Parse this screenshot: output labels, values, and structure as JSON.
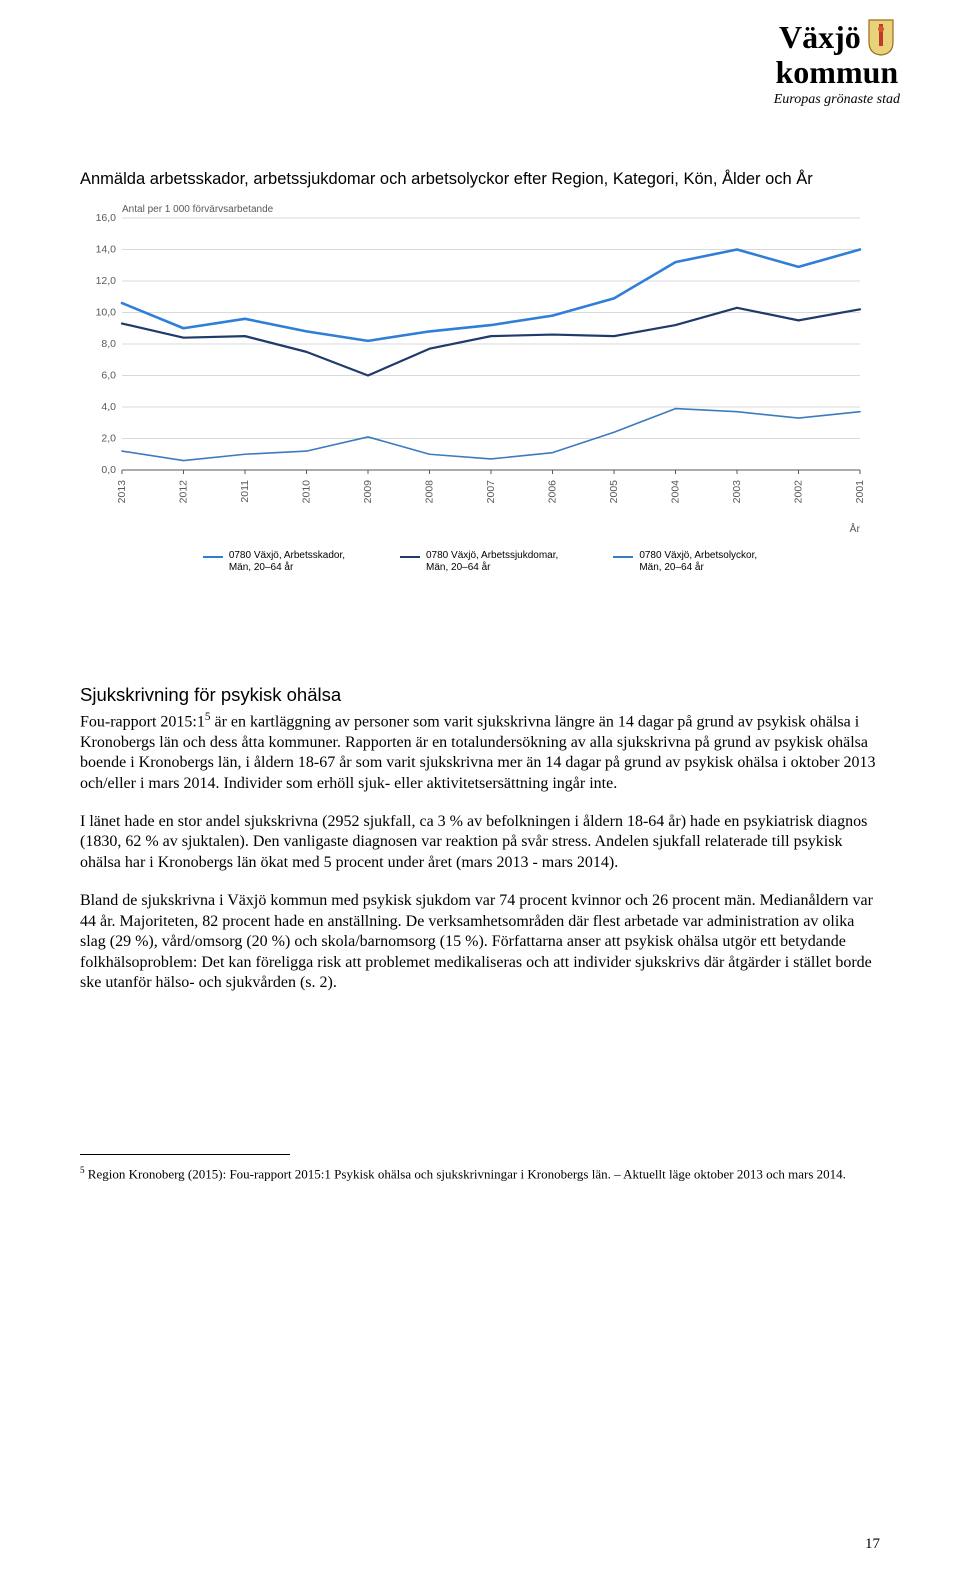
{
  "logo": {
    "line1": "Växjö",
    "line2": "kommun",
    "tagline": "Europas grönaste stad"
  },
  "chart": {
    "type": "line",
    "title": "Anmälda arbetsskador, arbetssjukdomar och arbetsolyckor efter Region, Kategori, Kön, Ålder och År",
    "y_subtitle": "Antal per 1 000 förvärvsarbetande",
    "x_axis_caption": "År",
    "background_color": "#ffffff",
    "grid_color": "#d9d9d9",
    "axis_color": "#595959",
    "ylim": [
      0,
      16
    ],
    "ytick_step": 2,
    "label_fontsize": 10.5,
    "title_fontsize": 16.5,
    "x_labels": [
      "2013",
      "2012",
      "2011",
      "2010",
      "2009",
      "2008",
      "2007",
      "2006",
      "2005",
      "2004",
      "2003",
      "2002",
      "2001"
    ],
    "series": [
      {
        "name": "Arbetsskador",
        "color": "#2f7ed8",
        "width": 2.6,
        "values": [
          10.6,
          9.0,
          9.6,
          8.8,
          8.2,
          8.8,
          9.2,
          9.8,
          10.9,
          13.2,
          14.0,
          12.9,
          14.0
        ]
      },
      {
        "name": "Arbetssjukdomar",
        "color": "#1f3a6b",
        "width": 2.2,
        "values": [
          9.3,
          8.4,
          8.5,
          7.5,
          6.0,
          7.7,
          8.5,
          8.6,
          8.5,
          9.2,
          10.3,
          9.5,
          10.2
        ]
      },
      {
        "name": "Arbetsolyckor",
        "color": "#3b7bbf",
        "width": 1.6,
        "values": [
          1.2,
          0.6,
          1.0,
          1.2,
          2.1,
          1.0,
          0.7,
          1.1,
          2.4,
          3.9,
          3.7,
          3.3,
          3.7
        ]
      }
    ],
    "legend": [
      {
        "color": "#2f7ed8",
        "line1": "0780 Växjö, Arbetsskador,",
        "line2": "Män, 20–64 år"
      },
      {
        "color": "#1f3a6b",
        "line1": "0780 Växjö, Arbetssjukdomar,",
        "line2": "Män, 20–64 år"
      },
      {
        "color": "#3b7bbf",
        "line1": "0780 Växjö, Arbetsolyckor,",
        "line2": "Män, 20–64 år"
      }
    ]
  },
  "text": {
    "heading": "Sjukskrivning för psykisk ohälsa",
    "p1_a": "Fou-rapport 2015:1",
    "p1_sup": "5",
    "p1_b": " är en kartläggning av personer som varit sjukskrivna längre än 14 dagar på grund av psykisk ohälsa i Kronobergs län och dess åtta kommuner. Rapporten är en totalundersökning av alla sjukskrivna på grund av psykisk ohälsa boende i Kronobergs län, i åldern 18-67 år som varit sjukskrivna mer än 14 dagar på grund av psykisk ohälsa i oktober 2013 och/eller i mars 2014. Individer som erhöll sjuk- eller aktivitetsersättning ingår inte.",
    "p2": "I länet hade en stor andel sjukskrivna (2952 sjukfall, ca 3 % av befolkningen i åldern 18-64 år) hade en psykiatrisk diagnos (1830, 62 % av sjuktalen). Den vanligaste diagnosen var reaktion på svår stress. Andelen sjukfall relaterade till psykisk ohälsa har i Kronobergs län ökat med 5 procent under året (mars 2013 - mars 2014).",
    "p3": "Bland de sjukskrivna i Växjö kommun med psykisk sjukdom var 74 procent kvinnor och 26 procent män. Medianåldern var 44 år. Majoriteten, 82 procent hade en anställning. De verksamhetsområden där flest arbetade var administration av olika slag (29 %), vård/omsorg (20 %) och skola/barnomsorg (15 %). Författarna anser att psykisk ohälsa utgör ett betydande folkhälsoproblem: Det kan föreligga risk att problemet medikaliseras och att individer sjukskrivs där åtgärder i stället borde ske utanför hälso- och sjukvården (s. 2)."
  },
  "footnote": {
    "sup": "5",
    "text": " Region Kronoberg (2015): Fou-rapport 2015:1 Psykisk ohälsa och sjukskrivningar i Kronobergs län. – Aktuellt läge oktober 2013 och mars 2014."
  },
  "page_number": "17"
}
